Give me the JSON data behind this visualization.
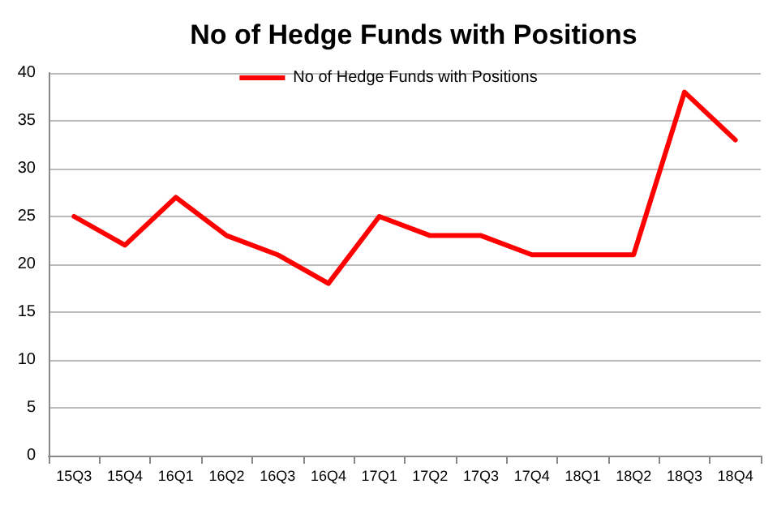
{
  "chart_data": {
    "type": "line",
    "title": "No of Hedge Funds with Positions",
    "categories": [
      "15Q3",
      "15Q4",
      "16Q1",
      "16Q2",
      "16Q3",
      "16Q4",
      "17Q1",
      "17Q2",
      "17Q3",
      "17Q4",
      "18Q1",
      "18Q2",
      "18Q3",
      "18Q4"
    ],
    "series": [
      {
        "name": "No of Hedge Funds with Positions",
        "color": "#ff0000",
        "values": [
          25,
          22,
          27,
          23,
          21,
          18,
          25,
          23,
          23,
          21,
          21,
          21,
          38,
          33
        ]
      }
    ],
    "ylim": [
      0,
      40
    ],
    "yticks": [
      0,
      5,
      10,
      15,
      20,
      25,
      30,
      35,
      40
    ],
    "grid": "y",
    "legend": "top",
    "marker": "none",
    "line_style": "solid"
  }
}
